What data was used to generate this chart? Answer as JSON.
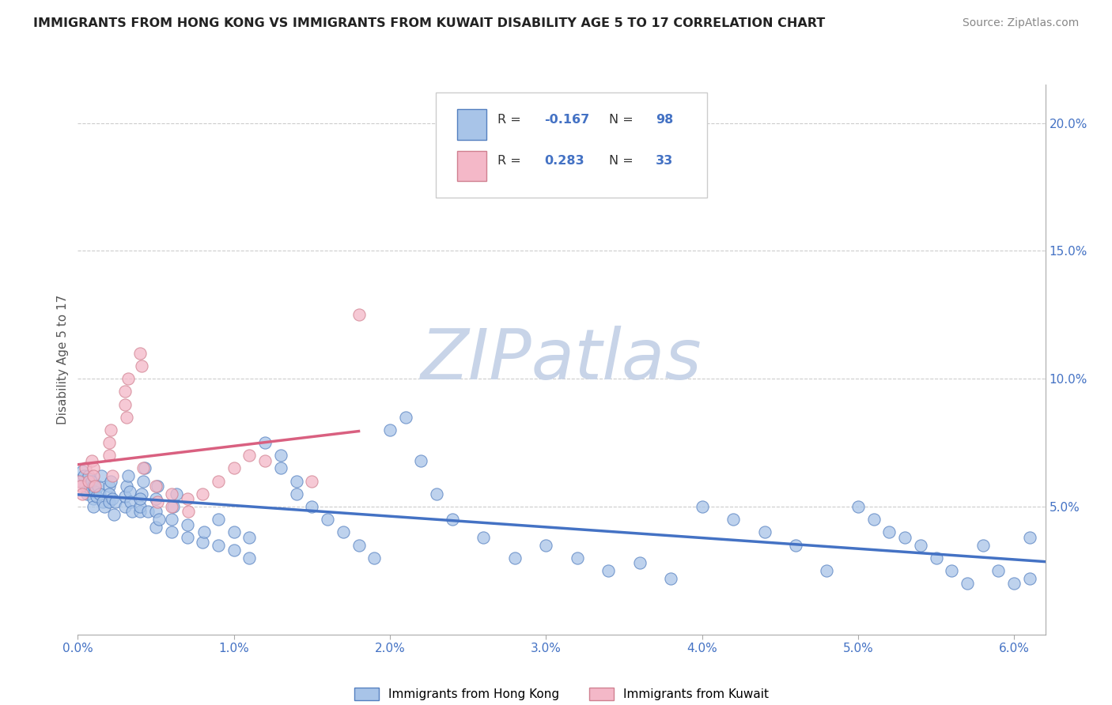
{
  "title": "IMMIGRANTS FROM HONG KONG VS IMMIGRANTS FROM KUWAIT DISABILITY AGE 5 TO 17 CORRELATION CHART",
  "source": "Source: ZipAtlas.com",
  "ylabel": "Disability Age 5 to 17",
  "xlim": [
    0.0,
    0.062
  ],
  "ylim": [
    0.0,
    0.215
  ],
  "xticks": [
    0.0,
    0.01,
    0.02,
    0.03,
    0.04,
    0.05,
    0.06
  ],
  "xticklabels": [
    "0.0%",
    "1.0%",
    "2.0%",
    "3.0%",
    "4.0%",
    "5.0%",
    "6.0%"
  ],
  "yticks_right": [
    0.05,
    0.1,
    0.15,
    0.2
  ],
  "ytick_right_labels": [
    "5.0%",
    "10.0%",
    "15.0%",
    "20.0%"
  ],
  "hk_R": -0.167,
  "hk_N": 98,
  "kw_R": 0.283,
  "kw_N": 33,
  "hk_scatter_color": "#a8c4e8",
  "hk_edge_color": "#5580c0",
  "hk_line_color": "#4472c4",
  "kw_scatter_color": "#f4b8c8",
  "kw_edge_color": "#d08090",
  "kw_line_color": "#d96080",
  "watermark_color": "#c8d4e8",
  "bg_color": "#ffffff",
  "legend_hk_label": "Immigrants from Hong Kong",
  "legend_kw_label": "Immigrants from Kuwait",
  "title_color": "#222222",
  "source_color": "#888888",
  "axis_color": "#4472c4",
  "label_color": "#555555",
  "grid_color": "#cccccc",
  "legend_text_color": "#333333",
  "legend_value_color": "#4472c4",
  "legend_box_edge": "#cccccc",
  "hk_x": [
    0.0002,
    0.0003,
    0.0004,
    0.0005,
    0.0006,
    0.0007,
    0.0008,
    0.0009,
    0.001,
    0.001,
    0.001,
    0.0011,
    0.0012,
    0.0013,
    0.0014,
    0.0015,
    0.0016,
    0.0017,
    0.002,
    0.002,
    0.002,
    0.0021,
    0.0022,
    0.0023,
    0.0024,
    0.003,
    0.003,
    0.0031,
    0.0032,
    0.0033,
    0.0034,
    0.0035,
    0.004,
    0.004,
    0.0041,
    0.0042,
    0.0043,
    0.004,
    0.0045,
    0.005,
    0.005,
    0.005,
    0.0051,
    0.0052,
    0.006,
    0.006,
    0.0061,
    0.0063,
    0.007,
    0.007,
    0.008,
    0.0081,
    0.009,
    0.009,
    0.01,
    0.01,
    0.011,
    0.011,
    0.012,
    0.013,
    0.013,
    0.014,
    0.014,
    0.015,
    0.016,
    0.017,
    0.018,
    0.019,
    0.02,
    0.021,
    0.022,
    0.023,
    0.024,
    0.026,
    0.028,
    0.03,
    0.032,
    0.034,
    0.036,
    0.038,
    0.04,
    0.042,
    0.044,
    0.046,
    0.048,
    0.05,
    0.051,
    0.052,
    0.053,
    0.054,
    0.055,
    0.056,
    0.057,
    0.058,
    0.059,
    0.06,
    0.061,
    0.061
  ],
  "hk_y": [
    0.06,
    0.064,
    0.062,
    0.058,
    0.055,
    0.062,
    0.057,
    0.06,
    0.058,
    0.053,
    0.05,
    0.056,
    0.054,
    0.058,
    0.055,
    0.062,
    0.052,
    0.05,
    0.058,
    0.055,
    0.052,
    0.06,
    0.053,
    0.047,
    0.052,
    0.05,
    0.054,
    0.058,
    0.062,
    0.056,
    0.052,
    0.048,
    0.048,
    0.05,
    0.055,
    0.06,
    0.065,
    0.053,
    0.048,
    0.042,
    0.048,
    0.053,
    0.058,
    0.045,
    0.04,
    0.045,
    0.05,
    0.055,
    0.038,
    0.043,
    0.036,
    0.04,
    0.045,
    0.035,
    0.04,
    0.033,
    0.038,
    0.03,
    0.075,
    0.07,
    0.065,
    0.06,
    0.055,
    0.05,
    0.045,
    0.04,
    0.035,
    0.03,
    0.08,
    0.085,
    0.068,
    0.055,
    0.045,
    0.038,
    0.03,
    0.035,
    0.03,
    0.025,
    0.028,
    0.022,
    0.05,
    0.045,
    0.04,
    0.035,
    0.025,
    0.05,
    0.045,
    0.04,
    0.038,
    0.035,
    0.03,
    0.025,
    0.02,
    0.035,
    0.025,
    0.02,
    0.038,
    0.022
  ],
  "kw_x": [
    0.0001,
    0.0002,
    0.0003,
    0.0005,
    0.0007,
    0.0009,
    0.001,
    0.001,
    0.0011,
    0.002,
    0.002,
    0.0021,
    0.0022,
    0.003,
    0.003,
    0.0031,
    0.0032,
    0.004,
    0.0041,
    0.0042,
    0.005,
    0.0051,
    0.006,
    0.006,
    0.007,
    0.0071,
    0.008,
    0.009,
    0.01,
    0.011,
    0.012,
    0.015,
    0.018
  ],
  "kw_y": [
    0.06,
    0.058,
    0.055,
    0.065,
    0.06,
    0.068,
    0.065,
    0.062,
    0.058,
    0.07,
    0.075,
    0.08,
    0.062,
    0.09,
    0.095,
    0.085,
    0.1,
    0.11,
    0.105,
    0.065,
    0.058,
    0.052,
    0.055,
    0.05,
    0.053,
    0.048,
    0.055,
    0.06,
    0.065,
    0.07,
    0.068,
    0.06,
    0.125
  ],
  "kw_line_extend_x": 0.018
}
